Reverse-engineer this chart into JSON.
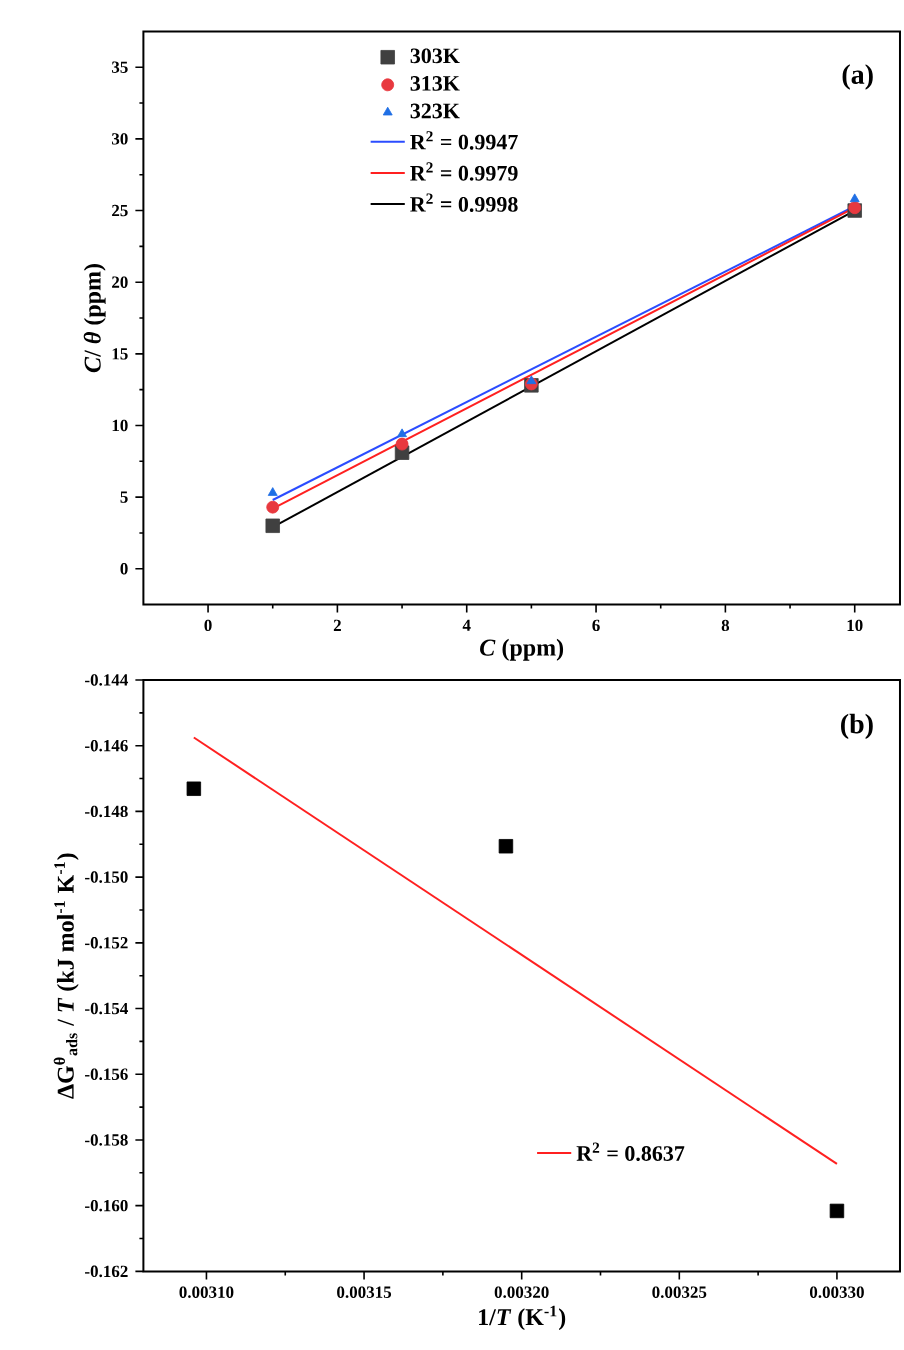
{
  "chart_data": [
    {
      "type": "scatter",
      "xlabel": "*C* (ppm)",
      "ylabel": "*C*/ *θ* (ppm)",
      "annotations": [
        "(a)"
      ],
      "legend": "top",
      "xlim": [
        -1,
        10.7
      ],
      "ylim": [
        -2.5,
        37.5
      ],
      "xticks": [
        0,
        2,
        4,
        6,
        8,
        10
      ],
      "yticks": [
        0,
        5,
        10,
        15,
        20,
        25,
        30,
        35
      ],
      "series": [
        {
          "name": "303K",
          "marker": "square",
          "color": "#404040",
          "x": [
            1,
            3,
            5,
            10
          ],
          "values": [
            3.0,
            8.1,
            12.8,
            25.0
          ]
        },
        {
          "name": "313K",
          "marker": "circle",
          "color": "#e8393f",
          "x": [
            1,
            3,
            5,
            10
          ],
          "values": [
            4.3,
            8.7,
            12.9,
            25.2
          ]
        },
        {
          "name": "323K",
          "marker": "triangle",
          "color": "#1f6fe5",
          "x": [
            1,
            3,
            5,
            10
          ],
          "values": [
            5.3,
            9.4,
            13.1,
            25.8
          ]
        },
        {
          "name": "R$^{2}$ = 0.9947",
          "type": "line",
          "color": "#2b4cff",
          "x": [
            1,
            10
          ],
          "values": [
            4.8,
            25.3
          ]
        },
        {
          "name": "R$^{2}$ = 0.9979",
          "type": "line",
          "color": "#ff2020",
          "x": [
            1,
            10
          ],
          "values": [
            4.2,
            25.2
          ]
        },
        {
          "name": "R$^{2}$ = 0.9998",
          "type": "line",
          "color": "#000000",
          "x": [
            1,
            10
          ],
          "values": [
            2.9,
            25.0
          ]
        }
      ]
    },
    {
      "type": "scatter",
      "xlabel": "1/*T* (K$^{-1}$)",
      "ylabel": "ΔG$^{θ}$$_{ads}$ / *T* (kJ mol$^{-1}$ K$^{-1}$)",
      "annotations": [
        "(b)"
      ],
      "legend": "bottom",
      "xlim": [
        0.00308,
        0.00332
      ],
      "ylim": [
        -0.162,
        -0.144
      ],
      "xticks": [
        {
          "value": 0.0031,
          "label": "0.00310"
        },
        {
          "value": 0.00315,
          "label": "0.00315"
        },
        {
          "value": 0.0032,
          "label": "0.00320"
        },
        {
          "value": 0.00325,
          "label": "0.00325"
        },
        {
          "value": 0.0033,
          "label": "0.00330"
        }
      ],
      "yticks": [
        {
          "value": -0.162,
          "label": "-0.162"
        },
        {
          "value": -0.16,
          "label": "-0.160"
        },
        {
          "value": -0.158,
          "label": "-0.158"
        },
        {
          "value": -0.156,
          "label": "-0.156"
        },
        {
          "value": -0.154,
          "label": "-0.154"
        },
        {
          "value": -0.152,
          "label": "-0.152"
        },
        {
          "value": -0.15,
          "label": "-0.150"
        },
        {
          "value": -0.148,
          "label": "-0.148"
        },
        {
          "value": -0.146,
          "label": "-0.146"
        },
        {
          "value": -0.144,
          "label": "-0.144"
        }
      ],
      "series": [
        {
          "marker": "square",
          "color": "#000000",
          "x": [
            0.003096,
            0.003195,
            0.0033
          ],
          "values": [
            -0.14731,
            -0.14906,
            -0.16016
          ]
        },
        {
          "name": "R$^{2}$ = 0.8637",
          "type": "line",
          "color": "#ff2020",
          "x": [
            0.003096,
            0.0033
          ],
          "values": [
            -0.14575,
            -0.15873
          ]
        }
      ]
    }
  ]
}
